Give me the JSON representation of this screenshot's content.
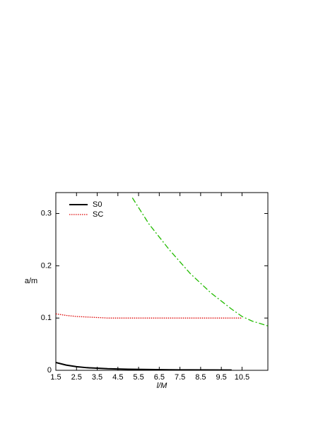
{
  "chart_data": {
    "type": "line",
    "xlabel": "l/M",
    "ylabel": "a/m",
    "xlim": [
      1.5,
      11.75
    ],
    "ylim": [
      0,
      0.34
    ],
    "xticks": [
      1.5,
      2.5,
      3.5,
      4.5,
      5.5,
      6.5,
      7.5,
      8.5,
      9.5,
      10.5
    ],
    "yticks": [
      0,
      0.1,
      0.2,
      0.3
    ],
    "legend": "top-left",
    "series": [
      {
        "name": "S0",
        "color": "#000000",
        "dash": "solid",
        "x": [
          1.5,
          2,
          2.5,
          3,
          3.5,
          4,
          5,
          6,
          7,
          8,
          9,
          10
        ],
        "values": [
          0.015,
          0.01,
          0.007,
          0.005,
          0.004,
          0.003,
          0.002,
          0.0015,
          0.001,
          0.0008,
          0.0006,
          0.0005
        ]
      },
      {
        "name": "SC",
        "color": "#dd0000",
        "dash": "dotted",
        "x": [
          1.5,
          2,
          2.5,
          3,
          4,
          5,
          6,
          7,
          8,
          9,
          10,
          10.5
        ],
        "values": [
          0.108,
          0.105,
          0.103,
          0.102,
          0.1,
          0.1,
          0.1,
          0.1,
          0.1,
          0.1,
          0.1,
          0.1
        ]
      },
      {
        "color": "#22bb00",
        "dash": "dashdot",
        "x": [
          5.2,
          6,
          7,
          8,
          9,
          10,
          10.5,
          11,
          11.75
        ],
        "values": [
          0.33,
          0.28,
          0.23,
          0.185,
          0.148,
          0.117,
          0.103,
          0.094,
          0.085
        ]
      }
    ]
  }
}
